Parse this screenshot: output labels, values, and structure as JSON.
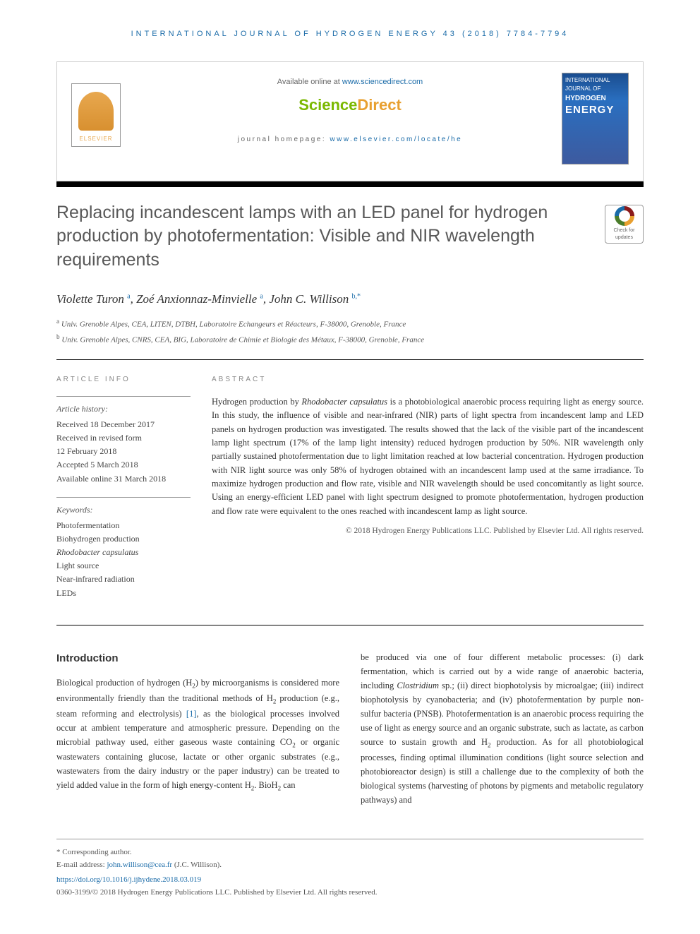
{
  "header": {
    "journal_line": "INTERNATIONAL JOURNAL OF HYDROGEN ENERGY 43 (2018) 7784-7794",
    "available_prefix": "Available online at ",
    "available_link": "www.sciencedirect.com",
    "sd_logo_main": "Science",
    "sd_logo_accent": "Direct",
    "homepage_prefix": "journal homepage: ",
    "homepage_link": "www.elsevier.com/locate/he",
    "elsevier_label": "ELSEVIER"
  },
  "cover": {
    "line1": "INTERNATIONAL JOURNAL OF",
    "line2": "HYDROGEN",
    "line3": "ENERGY"
  },
  "check_updates": {
    "line1": "Check for",
    "line2": "updates"
  },
  "title": "Replacing incandescent lamps with an LED panel for hydrogen production by photofermentation: Visible and NIR wavelength requirements",
  "authors_html": "Violette Turon <sup>a</sup>, Zoé Anxionnaz-Minvielle <sup>a</sup>, John C. Willison <sup>b,*</sup>",
  "affiliations": {
    "a": "Univ. Grenoble Alpes, CEA, LITEN, DTBH, Laboratoire Echangeurs et Réacteurs, F-38000, Grenoble, France",
    "b": "Univ. Grenoble Alpes, CNRS, CEA, BIG, Laboratoire de Chimie et Biologie des Métaux, F-38000, Grenoble, France"
  },
  "article_info": {
    "heading": "ARTICLE INFO",
    "history_label": "Article history:",
    "history": [
      "Received 18 December 2017",
      "Received in revised form",
      "12 February 2018",
      "Accepted 5 March 2018",
      "Available online 31 March 2018"
    ],
    "keywords_label": "Keywords:",
    "keywords": [
      "Photofermentation",
      "Biohydrogen production",
      "Rhodobacter capsulatus",
      "Light source",
      "Near-infrared radiation",
      "LEDs"
    ]
  },
  "abstract": {
    "heading": "ABSTRACT",
    "text": "Hydrogen production by Rhodobacter capsulatus is a photobiological anaerobic process requiring light as energy source. In this study, the influence of visible and near-infrared (NIR) parts of light spectra from incandescent lamp and LED panels on hydrogen production was investigated. The results showed that the lack of the visible part of the incandescent lamp light spectrum (17% of the lamp light intensity) reduced hydrogen production by 50%. NIR wavelength only partially sustained photofermentation due to light limitation reached at low bacterial concentration. Hydrogen production with NIR light source was only 58% of hydrogen obtained with an incandescent lamp used at the same irradiance. To maximize hydrogen production and flow rate, visible and NIR wavelength should be used concomitantly as light source. Using an energy-efficient LED panel with light spectrum designed to promote photofermentation, hydrogen production and flow rate were equivalent to the ones reached with incandescent lamp as light source.",
    "copyright": "© 2018 Hydrogen Energy Publications LLC. Published by Elsevier Ltd. All rights reserved."
  },
  "body": {
    "intro_heading": "Introduction",
    "col1": "Biological production of hydrogen (H₂) by microorganisms is considered more environmentally friendly than the traditional methods of H₂ production (e.g., steam reforming and electrolysis) [1], as the biological processes involved occur at ambient temperature and atmospheric pressure. Depending on the microbial pathway used, either gaseous waste containing CO₂ or organic wastewaters containing glucose, lactate or other organic substrates (e.g., wastewaters from the dairy industry or the paper industry) can be treated to yield added value in the form of high energy-content H₂. BioH₂ can",
    "col2": "be produced via one of four different metabolic processes: (i) dark fermentation, which is carried out by a wide range of anaerobic bacteria, including Clostridium sp.; (ii) direct biophotolysis by microalgae; (iii) indirect biophotolysis by cyanobacteria; and (iv) photofermentation by purple non-sulfur bacteria (PNSB). Photofermentation is an anaerobic process requiring the use of light as energy source and an organic substrate, such as lactate, as carbon source to sustain growth and H₂ production. As for all photobiological processes, finding optimal illumination conditions (light source selection and photobioreactor design) is still a challenge due to the complexity of both the biological systems (harvesting of photons by pigments and metabolic regulatory pathways) and"
  },
  "footer": {
    "corr": "* Corresponding author.",
    "email_label": "E-mail address: ",
    "email": "john.willison@cea.fr",
    "email_suffix": " (J.C. Willison).",
    "doi": "https://doi.org/10.1016/j.ijhydene.2018.03.019",
    "issn": "0360-3199/© 2018 Hydrogen Energy Publications LLC. Published by Elsevier Ltd. All rights reserved."
  },
  "colors": {
    "link": "#1a6ba8",
    "sd_green": "#7ab800",
    "sd_orange": "#e8a030",
    "elsevier_orange": "#e8a84f"
  }
}
